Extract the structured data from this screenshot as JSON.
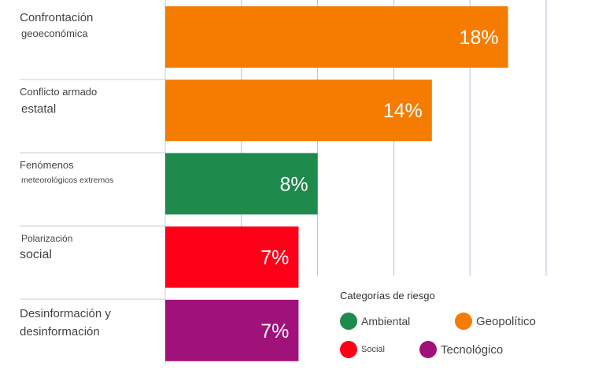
{
  "chart_data": {
    "type": "bar",
    "orientation": "horizontal",
    "categories": [
      [
        "Confrontación",
        "geoeconómica"
      ],
      [
        "Conflicto armado",
        "estatal"
      ],
      [
        "Fenómenos",
        "meteorológicos extremos"
      ],
      [
        "Polarización",
        "social"
      ],
      [
        "Desinformación y",
        "desinformación"
      ]
    ],
    "values": [
      18,
      14,
      8,
      7,
      7
    ],
    "value_labels": [
      "18%",
      "14%",
      "8%",
      "7%",
      "7%"
    ],
    "value_suffix": "%",
    "bar_categories": [
      "Geopolítico",
      "Geopolítico",
      "Ambiental",
      "Social",
      "Tecnológico"
    ],
    "xlim": [
      0,
      20
    ],
    "grid": true,
    "legend": {
      "title": "Categorías de riesgo",
      "placement": "bottom-right",
      "items": [
        {
          "name": "Ambiental",
          "color": "#1e8a4c"
        },
        {
          "name": "Geopolítico",
          "color": "#f57c00"
        },
        {
          "name": "Social",
          "color": "#ff0019"
        },
        {
          "name": "Tecnológico",
          "color": "#a0127a"
        }
      ]
    }
  }
}
